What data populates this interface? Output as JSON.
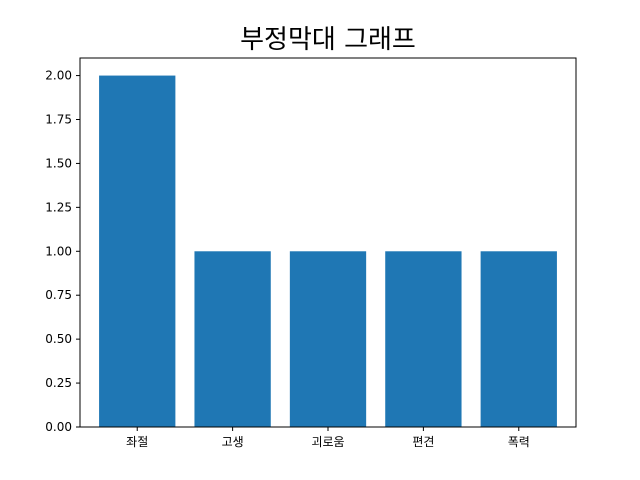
{
  "chart_data": {
    "type": "bar",
    "title": "부정막대 그래프",
    "xlabel": "",
    "ylabel": "",
    "categories": [
      "좌절",
      "고생",
      "괴로움",
      "편견",
      "폭력"
    ],
    "values": [
      2,
      1,
      1,
      1,
      1
    ],
    "ylim": [
      0,
      2.1
    ],
    "yticks": [
      "0.00",
      "0.25",
      "0.50",
      "0.75",
      "1.00",
      "1.25",
      "1.50",
      "1.75",
      "2.00"
    ],
    "bar_color": "#1f77b4",
    "grid": false,
    "legend": "none"
  }
}
